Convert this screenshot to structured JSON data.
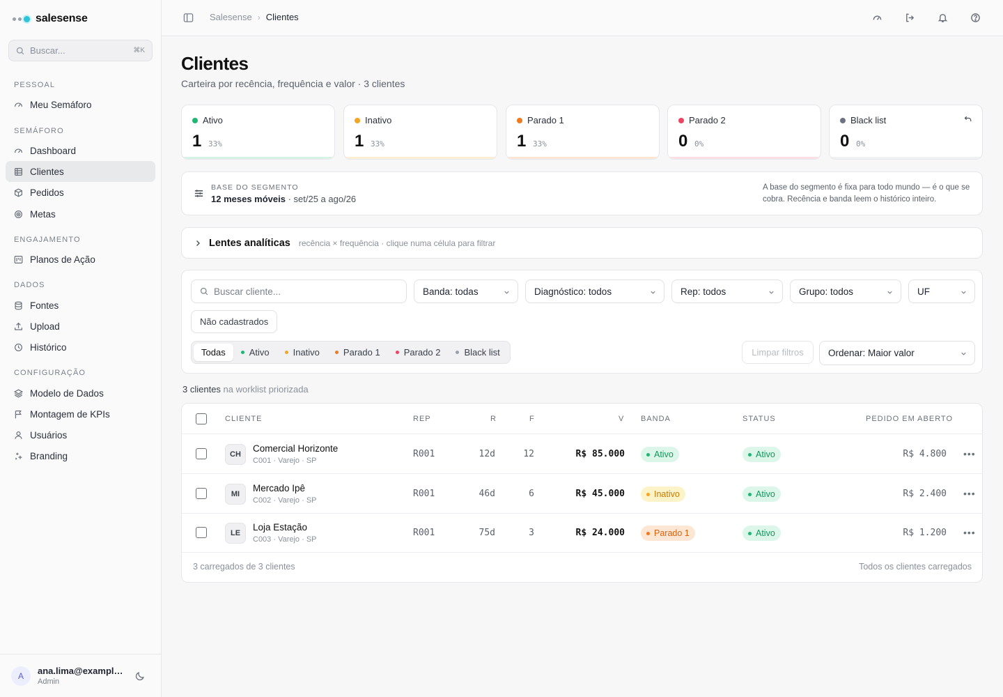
{
  "app": {
    "brand": "salesense",
    "search_placeholder": "Buscar...",
    "search_shortcut": "⌘K"
  },
  "sidebar": {
    "sections": [
      {
        "title": "PESSOAL"
      },
      {
        "title": "SEMÁFORO"
      },
      {
        "title": "ENGAJAMENTO"
      },
      {
        "title": "DADOS"
      },
      {
        "title": "CONFIGURAÇÃO"
      }
    ],
    "items": [
      {
        "label": "Meu Semáforo",
        "icon": "gauge-icon"
      },
      {
        "label": "Dashboard",
        "icon": "gauge-icon"
      },
      {
        "label": "Clientes",
        "icon": "table-icon",
        "active": true
      },
      {
        "label": "Pedidos",
        "icon": "box-icon"
      },
      {
        "label": "Metas",
        "icon": "target-icon"
      },
      {
        "label": "Planos de Ação",
        "icon": "kanban-icon"
      },
      {
        "label": "Fontes",
        "icon": "database-icon"
      },
      {
        "label": "Upload",
        "icon": "upload-icon"
      },
      {
        "label": "Histórico",
        "icon": "clock-icon"
      },
      {
        "label": "Modelo de Dados",
        "icon": "layers-icon"
      },
      {
        "label": "Montagem de KPIs",
        "icon": "flag-icon"
      },
      {
        "label": "Usuários",
        "icon": "user-icon"
      },
      {
        "label": "Branding",
        "icon": "sparkle-icon"
      }
    ],
    "user": {
      "initial": "A",
      "email": "ana.lima@example.com",
      "role": "Admin"
    }
  },
  "topbar": {
    "breadcrumb": [
      "Salesense",
      "Clientes"
    ],
    "icons": [
      "gauge-icon",
      "logout-icon",
      "bell-icon",
      "help-icon"
    ]
  },
  "page": {
    "title": "Clientes",
    "subtitle": "Carteira por recência, frequência e valor · 3 clientes"
  },
  "kpis": [
    {
      "label": "Ativo",
      "count": "1",
      "pct": "33%",
      "color": "#22b573",
      "bar": "#d8f3e6"
    },
    {
      "label": "Inativo",
      "count": "1",
      "pct": "33%",
      "color": "#f5a524",
      "bar": "#fcefd6"
    },
    {
      "label": "Parado 1",
      "count": "1",
      "pct": "33%",
      "color": "#f07a1f",
      "bar": "#fde6d3"
    },
    {
      "label": "Parado 2",
      "count": "0",
      "pct": "0%",
      "color": "#ef4461",
      "bar": "#fde0e5"
    },
    {
      "label": "Black list",
      "count": "0",
      "pct": "0%",
      "color": "#6b7280",
      "bar": "#f0f1f3"
    }
  ],
  "segment": {
    "kicker": "BASE DO SEGMENTO",
    "period": "12 meses móveis",
    "range": "· set/25 a ago/26",
    "note": "A base do segmento é fixa para todo mundo — é o que se cobra. Recência e banda leem o histórico inteiro."
  },
  "lens": {
    "title": "Lentes analíticas",
    "subtitle": "recência × frequência · clique numa célula para filtrar"
  },
  "filters": {
    "search_placeholder": "Buscar cliente...",
    "banda": "Banda: todas",
    "diagnostico": "Diagnóstico: todos",
    "rep": "Rep: todos",
    "grupo": "Grupo: todos",
    "uf": "UF",
    "nao_cadastrados": "Não cadastrados",
    "tabs": [
      {
        "label": "Todas",
        "color": "",
        "active": true
      },
      {
        "label": "Ativo",
        "color": "#22b573"
      },
      {
        "label": "Inativo",
        "color": "#f5a524"
      },
      {
        "label": "Parado 1",
        "color": "#f07a1f"
      },
      {
        "label": "Parado 2",
        "color": "#ef4461"
      },
      {
        "label": "Black list",
        "color": "#9aa0aa"
      }
    ],
    "clear": "Limpar filtros",
    "order": "Ordenar: Maior valor"
  },
  "worklist": {
    "count": "3 clientes",
    "suffix": "na worklist priorizada"
  },
  "table": {
    "headers": [
      "CLIENTE",
      "REP",
      "R",
      "F",
      "V",
      "BANDA",
      "STATUS",
      "PEDIDO EM ABERTO"
    ],
    "rows": [
      {
        "initials": "CH",
        "name": "Comercial Horizonte",
        "meta": "C001 · Varejo · SP",
        "rep": "R001",
        "r": "12d",
        "f": "12",
        "v": "R$ 85.000",
        "banda": "Ativo",
        "status": "Ativo",
        "pedido": "R$ 4.800"
      },
      {
        "initials": "MI",
        "name": "Mercado Ipê",
        "meta": "C002 · Varejo · SP",
        "rep": "R001",
        "r": "46d",
        "f": "6",
        "v": "R$ 45.000",
        "banda": "Inativo",
        "status": "Ativo",
        "pedido": "R$ 2.400"
      },
      {
        "initials": "LE",
        "name": "Loja Estação",
        "meta": "C003 · Varejo · SP",
        "rep": "R001",
        "r": "75d",
        "f": "3",
        "v": "R$ 24.000",
        "banda": "Parado 1",
        "status": "Ativo",
        "pedido": "R$ 1.200"
      }
    ],
    "footer_left": "3 carregados de 3 clientes",
    "footer_right": "Todos os clientes carregados"
  },
  "band_colors": {
    "Ativo": {
      "bg": "#dcf6ea",
      "fg": "#13955a",
      "dot": "#22b573"
    },
    "Inativo": {
      "bg": "#fdf3c8",
      "fg": "#c77a06",
      "dot": "#f5a524"
    },
    "Parado 1": {
      "bg": "#fde6d3",
      "fg": "#d9620c",
      "dot": "#f07a1f"
    }
  }
}
